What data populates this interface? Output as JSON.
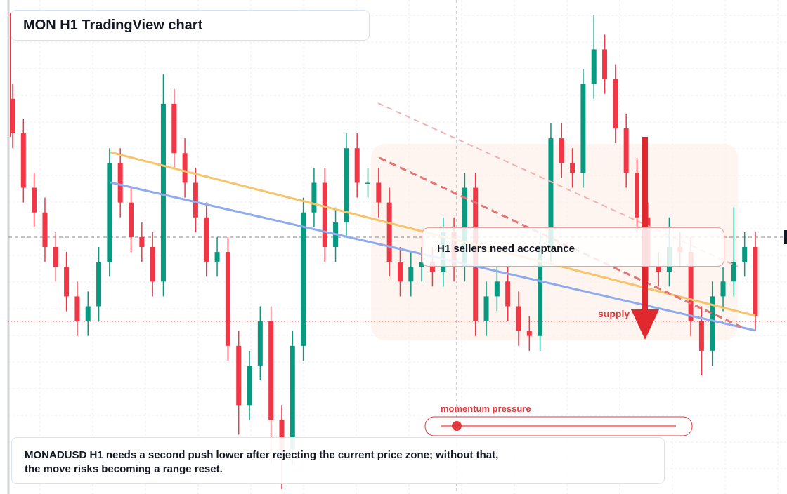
{
  "chart_data": {
    "type": "candlestick",
    "title": "MON H1 TradingView chart",
    "callout": "H1 sellers need acceptance",
    "zone_label": "supply",
    "gauge_label": "momentum pressure",
    "caption": [
      "MONADUSD H1 needs a second push lower after rejecting the current price zone; without that,",
      "the move risks becoming a range reset."
    ],
    "up_color": "#089981",
    "down_color": "#f23645",
    "ylim": [
      0,
      100
    ],
    "series": {
      "open": [
        80,
        73,
        62,
        57,
        50,
        46,
        40,
        35,
        38,
        47,
        67,
        59,
        52,
        50,
        43,
        79,
        69,
        63,
        56,
        47,
        49,
        30,
        18,
        26,
        35,
        15,
        9,
        30,
        57,
        63,
        50,
        55,
        70,
        63,
        63,
        59,
        47,
        43,
        46,
        47,
        45,
        53,
        46,
        62,
        35,
        40,
        43,
        38,
        33,
        32,
        50,
        72,
        67,
        65,
        83,
        90,
        84,
        74,
        65,
        56,
        46,
        45,
        50,
        49,
        35,
        29,
        40,
        43,
        47,
        50
      ],
      "high": [
        83,
        76,
        65,
        60,
        53,
        49,
        43,
        41,
        50,
        70,
        70,
        62,
        55,
        53,
        85,
        82,
        72,
        66,
        59,
        52,
        52,
        33,
        29,
        38,
        38,
        18,
        33,
        60,
        66,
        66,
        58,
        73,
        73,
        66,
        66,
        62,
        50,
        49,
        50,
        50,
        56,
        56,
        65,
        65,
        43,
        46,
        46,
        41,
        36,
        53,
        75,
        75,
        70,
        86,
        97,
        93,
        87,
        77,
        68,
        59,
        49,
        56,
        53,
        52,
        38,
        43,
        46,
        58,
        53,
        53
      ],
      "low": [
        70,
        59,
        54,
        47,
        43,
        37,
        32,
        32,
        35,
        44,
        56,
        49,
        47,
        40,
        40,
        66,
        60,
        53,
        44,
        44,
        27,
        12,
        15,
        23,
        6,
        1,
        6,
        27,
        54,
        47,
        47,
        52,
        60,
        60,
        56,
        44,
        40,
        40,
        43,
        42,
        42,
        43,
        43,
        32,
        32,
        37,
        35,
        30,
        29,
        29,
        47,
        64,
        62,
        62,
        80,
        81,
        71,
        62,
        53,
        43,
        42,
        42,
        46,
        32,
        24,
        26,
        37,
        40,
        44,
        33
      ],
      "close": [
        73,
        62,
        57,
        50,
        46,
        40,
        35,
        38,
        47,
        67,
        59,
        52,
        50,
        43,
        79,
        69,
        63,
        56,
        47,
        49,
        30,
        18,
        26,
        35,
        15,
        9,
        30,
        57,
        63,
        50,
        55,
        70,
        63,
        63,
        59,
        47,
        43,
        46,
        47,
        45,
        53,
        46,
        62,
        35,
        40,
        43,
        38,
        33,
        32,
        50,
        72,
        67,
        65,
        83,
        90,
        84,
        74,
        65,
        56,
        46,
        45,
        50,
        49,
        35,
        29,
        40,
        43,
        47,
        50,
        36
      ]
    }
  }
}
